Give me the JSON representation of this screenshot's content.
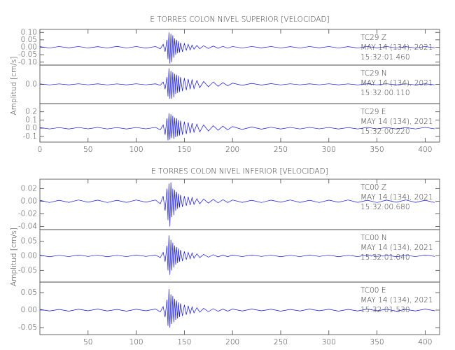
{
  "chart_data": [
    {
      "type": "line",
      "title": "E TORRES COLON NIVEL SUPERIOR [VELOCIDAD]",
      "ylabel": "Amplitud [cm/s]",
      "xlim": [
        0,
        415
      ],
      "xticks": [
        0,
        50,
        100,
        150,
        200,
        250,
        300,
        350,
        400
      ],
      "x": [
        0,
        10,
        20,
        30,
        40,
        50,
        60,
        70,
        80,
        90,
        100,
        110,
        120,
        125,
        128,
        130,
        132,
        133,
        134,
        135,
        136,
        137,
        138,
        139,
        140,
        141,
        142,
        143,
        144,
        145,
        146,
        148,
        150,
        152,
        154,
        156,
        158,
        160,
        163,
        166,
        170,
        175,
        180,
        185,
        190,
        195,
        200,
        210,
        220,
        230,
        240,
        250,
        260,
        270,
        280,
        290,
        300,
        310,
        320,
        330,
        340,
        350,
        360,
        370,
        380,
        390,
        400,
        410
      ],
      "series": [
        {
          "name": "TC29   Z",
          "date": "MAY 14 (134), 2021",
          "time": "15:32:01.460",
          "color": "#1010e0",
          "ylim": [
            -0.12,
            0.12
          ],
          "yticks": [
            {
              "value": 0.1,
              "label": "0.10"
            },
            0.05,
            {
              "value": 0,
              "label": "0.00"
            },
            -0.05,
            {
              "value": -0.1,
              "label": "-0.10"
            }
          ],
          "values": [
            0.004,
            -0.005,
            0.005,
            -0.004,
            0.005,
            -0.005,
            0.004,
            -0.005,
            0.006,
            -0.005,
            0.005,
            -0.006,
            0.005,
            -0.01,
            0.02,
            -0.03,
            0.05,
            -0.08,
            0.1,
            -0.11,
            0.09,
            -0.1,
            0.08,
            -0.07,
            0.06,
            -0.05,
            0.05,
            -0.04,
            0.04,
            -0.035,
            0.03,
            -0.03,
            0.025,
            -0.02,
            0.02,
            -0.018,
            0.015,
            -0.013,
            0.012,
            -0.01,
            0.01,
            -0.008,
            0.008,
            -0.007,
            0.006,
            -0.006,
            0.005,
            -0.005,
            0.005,
            -0.004,
            0.005,
            -0.005,
            0.004,
            -0.005,
            0.005,
            -0.004,
            0.005,
            -0.005,
            0.004,
            -0.005,
            0.005,
            -0.004,
            0.005,
            -0.005,
            0.004,
            -0.005,
            0.005,
            -0.004
          ]
        },
        {
          "name": "TC29   N",
          "date": "MAY 14 (134), 2021",
          "time": "15:32:00.110",
          "color": "#1010e0",
          "ylim": [
            -0.4,
            0.4
          ],
          "yticks": [
            {
              "value": 0,
              "label": "0.0"
            }
          ],
          "values": [
            0.01,
            -0.012,
            0.01,
            -0.011,
            0.012,
            -0.01,
            0.011,
            -0.012,
            0.01,
            -0.011,
            0.012,
            -0.01,
            0.011,
            -0.02,
            0.05,
            -0.1,
            0.15,
            -0.25,
            0.33,
            -0.3,
            0.28,
            -0.3,
            0.25,
            -0.27,
            0.22,
            -0.2,
            0.2,
            -0.18,
            0.18,
            -0.16,
            0.15,
            -0.14,
            0.13,
            -0.12,
            0.11,
            -0.1,
            0.1,
            -0.09,
            0.08,
            -0.07,
            0.06,
            -0.05,
            0.05,
            -0.04,
            0.035,
            -0.03,
            0.025,
            -0.02,
            0.02,
            -0.015,
            0.015,
            -0.012,
            0.012,
            -0.01,
            0.011,
            -0.01,
            0.012,
            -0.011,
            0.01,
            -0.012,
            0.011,
            -0.01,
            0.012,
            -0.011,
            0.01,
            -0.012,
            0.011,
            -0.01
          ]
        },
        {
          "name": "TC29   E",
          "date": "MAY 14 (134), 2021",
          "time": "15:32:00.220",
          "color": "#1010e0",
          "ylim": [
            -0.17,
            0.3
          ],
          "yticks": [
            0.2,
            0.1,
            {
              "value": 0,
              "label": "0.0"
            },
            -0.1
          ],
          "values": [
            0.008,
            -0.009,
            0.008,
            -0.01,
            0.009,
            -0.008,
            0.01,
            -0.009,
            0.008,
            -0.01,
            0.009,
            -0.008,
            0.01,
            -0.02,
            0.04,
            -0.08,
            0.12,
            -0.15,
            0.18,
            -0.14,
            0.17,
            -0.12,
            0.15,
            -0.13,
            0.13,
            -0.11,
            0.12,
            -0.1,
            0.1,
            -0.09,
            0.09,
            -0.08,
            0.08,
            -0.07,
            0.07,
            -0.06,
            0.06,
            -0.05,
            0.05,
            -0.045,
            0.04,
            -0.035,
            0.03,
            -0.025,
            0.025,
            -0.02,
            0.02,
            -0.015,
            0.015,
            -0.012,
            0.012,
            -0.01,
            0.01,
            -0.009,
            0.01,
            -0.008,
            0.009,
            -0.01,
            0.008,
            -0.009,
            0.01,
            -0.008,
            0.009,
            -0.01,
            0.008,
            -0.009,
            0.01,
            -0.008
          ]
        }
      ]
    },
    {
      "type": "line",
      "title": "E TORRES COLON NIVEL INFERIOR [VELOCIDAD]",
      "ylabel": "Amplitud [cm/s]",
      "xlim": [
        0,
        415
      ],
      "xticks": [
        50,
        100,
        150,
        200,
        250,
        300,
        350,
        400
      ],
      "x": [
        0,
        10,
        20,
        30,
        40,
        50,
        60,
        70,
        80,
        90,
        100,
        110,
        120,
        125,
        128,
        130,
        132,
        133,
        134,
        135,
        136,
        137,
        138,
        139,
        140,
        141,
        142,
        143,
        144,
        145,
        146,
        148,
        150,
        152,
        154,
        156,
        158,
        160,
        163,
        166,
        170,
        175,
        180,
        185,
        190,
        195,
        200,
        210,
        220,
        230,
        240,
        250,
        260,
        270,
        280,
        290,
        300,
        310,
        320,
        330,
        340,
        350,
        360,
        370,
        380,
        390,
        400,
        410
      ],
      "series": [
        {
          "name": "TC00   Z",
          "date": "MAY 14 (134), 2021",
          "time": "15:32:00.680",
          "color": "#1010e0",
          "ylim": [
            -0.045,
            0.035
          ],
          "yticks": [
            {
              "value": 0.02,
              "label": "0.02"
            },
            {
              "value": 0,
              "label": "0.00"
            },
            -0.02,
            -0.04
          ],
          "values": [
            0.0015,
            -0.002,
            0.0015,
            -0.0018,
            0.002,
            -0.0015,
            0.0018,
            -0.002,
            0.0015,
            -0.0018,
            0.002,
            -0.0015,
            0.002,
            -0.004,
            0.008,
            -0.015,
            0.02,
            -0.03,
            0.028,
            -0.04,
            0.03,
            -0.025,
            0.02,
            -0.022,
            0.018,
            -0.015,
            0.015,
            -0.012,
            0.012,
            -0.01,
            0.01,
            -0.009,
            0.008,
            -0.007,
            0.007,
            -0.006,
            0.006,
            -0.005,
            0.004,
            -0.004,
            0.0035,
            -0.003,
            0.003,
            -0.0025,
            0.0025,
            -0.002,
            0.002,
            -0.0018,
            0.0015,
            -0.002,
            0.0018,
            -0.0015,
            0.002,
            -0.0018,
            0.0015,
            -0.002,
            0.0018,
            -0.0015,
            0.002,
            -0.0018,
            0.0015,
            -0.002,
            0.0018,
            -0.0015,
            0.002,
            -0.0018,
            0.0015,
            -0.002
          ]
        },
        {
          "name": "TC00   N",
          "date": "MAY 14 (134), 2021",
          "time": "15:32:01.040",
          "color": "#1010e0",
          "ylim": [
            -0.09,
            0.09
          ],
          "yticks": [
            0.05,
            {
              "value": 0,
              "label": "0.00"
            },
            -0.05
          ],
          "values": [
            0.002,
            -0.003,
            0.002,
            -0.0025,
            0.003,
            -0.002,
            0.0025,
            -0.003,
            0.002,
            -0.0025,
            0.003,
            -0.002,
            0.003,
            -0.006,
            0.012,
            -0.02,
            0.035,
            -0.05,
            0.07,
            -0.065,
            0.055,
            -0.05,
            0.045,
            -0.04,
            0.035,
            -0.03,
            0.03,
            -0.025,
            0.025,
            -0.02,
            0.02,
            -0.018,
            0.015,
            -0.013,
            0.012,
            -0.01,
            0.01,
            -0.008,
            0.007,
            -0.006,
            0.005,
            -0.0045,
            0.004,
            -0.0035,
            0.003,
            -0.003,
            0.003,
            -0.0025,
            0.003,
            -0.002,
            0.0025,
            -0.003,
            0.002,
            -0.0025,
            0.003,
            -0.002,
            0.0025,
            -0.003,
            0.002,
            -0.0025,
            0.003,
            -0.002,
            0.0025,
            -0.003,
            0.002,
            -0.0025,
            0.003,
            -0.002
          ]
        },
        {
          "name": "TC00   E",
          "date": "MAY 14 (134), 2021",
          "time": "15:32:01.530",
          "color": "#1010e0",
          "ylim": [
            -0.07,
            0.08
          ],
          "yticks": [
            0.05,
            {
              "value": 0,
              "label": "0.00"
            },
            -0.05
          ],
          "values": [
            0.002,
            -0.0025,
            0.002,
            -0.003,
            0.0025,
            -0.002,
            0.003,
            -0.0025,
            0.002,
            -0.003,
            0.0025,
            -0.002,
            0.003,
            -0.005,
            0.01,
            -0.02,
            0.03,
            -0.045,
            0.06,
            -0.05,
            0.045,
            -0.04,
            0.04,
            -0.035,
            0.032,
            -0.028,
            0.027,
            -0.024,
            0.022,
            -0.02,
            0.019,
            -0.017,
            0.015,
            -0.013,
            0.012,
            -0.01,
            0.009,
            -0.008,
            0.007,
            -0.006,
            0.005,
            -0.0045,
            0.004,
            -0.0035,
            0.003,
            -0.003,
            0.003,
            -0.0025,
            0.003,
            -0.002,
            0.0025,
            -0.003,
            0.002,
            -0.0025,
            0.003,
            -0.002,
            0.0025,
            -0.003,
            0.002,
            -0.0025,
            0.003,
            -0.002,
            0.0025,
            -0.003,
            0.002,
            -0.0025,
            0.003,
            -0.002
          ]
        }
      ]
    }
  ]
}
